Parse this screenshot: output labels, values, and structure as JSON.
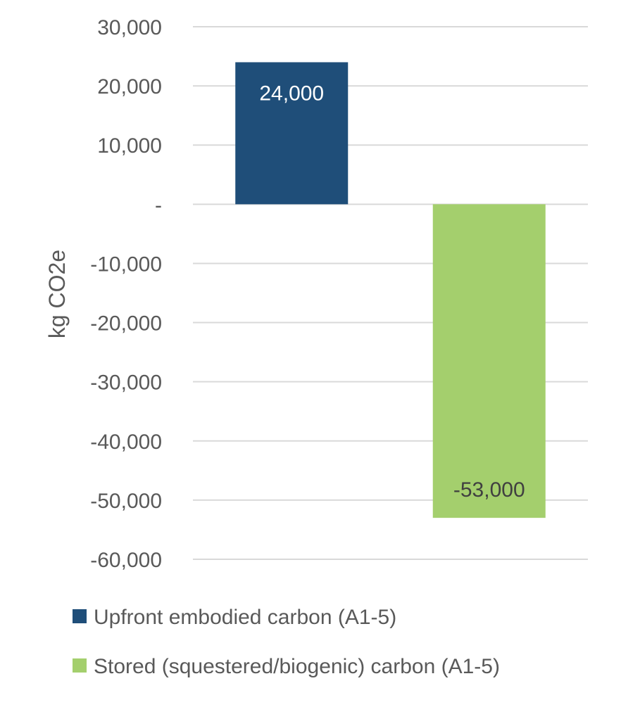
{
  "chart_data": {
    "type": "bar",
    "categories": [
      "Upfront embodied carbon (A1-5)",
      "Stored (squestered/biogenic) carbon (A1-5)"
    ],
    "series": [
      {
        "name": "Upfront embodied carbon (A1-5)",
        "values": [
          24000,
          null
        ],
        "color": "#1f4e79"
      },
      {
        "name": "Stored (squestered/biogenic) carbon (A1-5)",
        "values": [
          null,
          -53000
        ],
        "color": "#a4cf6d"
      }
    ],
    "data_labels": [
      "24,000",
      "-53,000"
    ],
    "ylabel": "kg CO2e",
    "ylim": [
      -60000,
      30000
    ],
    "yticks": [
      30000,
      20000,
      10000,
      0,
      -10000,
      -20000,
      -30000,
      -40000,
      -50000,
      -60000
    ],
    "ytick_labels": [
      "30,000",
      "20,000",
      "10,000",
      "-",
      "-10,000",
      "-20,000",
      "-30,000",
      "-40,000",
      "-50,000",
      "-60,000"
    ],
    "grid": true,
    "legend_position": "bottom",
    "legend": [
      {
        "label": "Upfront embodied carbon (A1-5)",
        "color": "#1f4e79"
      },
      {
        "label": "Stored (squestered/biogenic) carbon (A1-5)",
        "color": "#a4cf6d"
      }
    ]
  }
}
